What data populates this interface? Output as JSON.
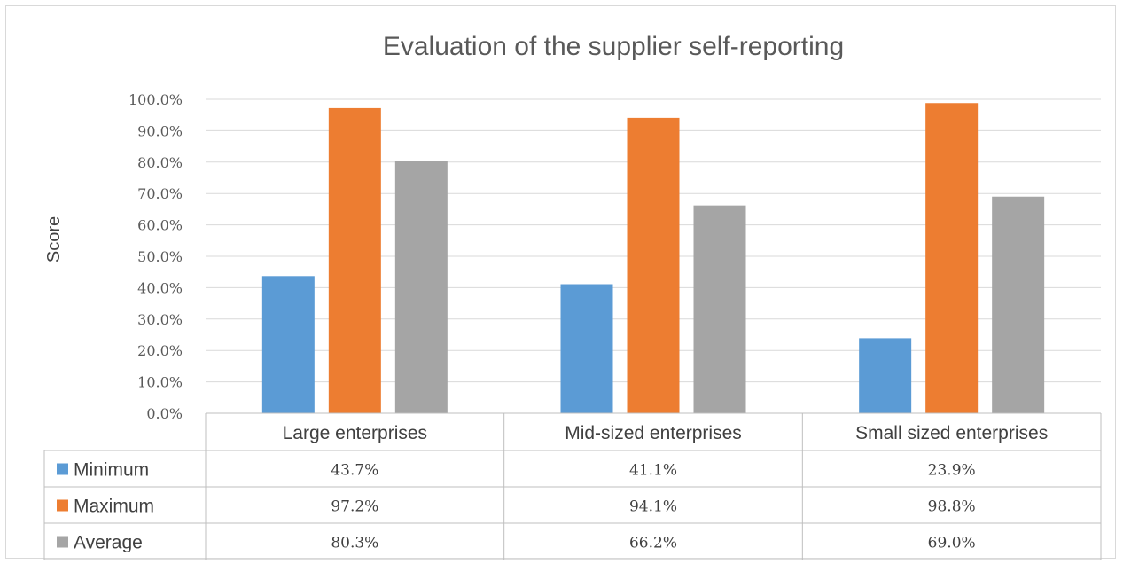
{
  "chart_data": {
    "type": "bar",
    "title": "Evaluation of the supplier self-reporting",
    "ylabel": "Score",
    "xlabel": "",
    "ylim": [
      0,
      100
    ],
    "y_ticks": [
      "0.0%",
      "10.0%",
      "20.0%",
      "30.0%",
      "40.0%",
      "50.0%",
      "60.0%",
      "70.0%",
      "80.0%",
      "90.0%",
      "100.0%"
    ],
    "grid": true,
    "legend": "data-table",
    "categories": [
      "Large enterprises",
      "Mid-sized enterprises",
      "Small sized enterprises"
    ],
    "series": [
      {
        "name": "Minimum",
        "color": "#5b9bd5",
        "values": [
          43.7,
          41.1,
          23.9
        ],
        "labels": [
          "43.7%",
          "41.1%",
          "23.9%"
        ]
      },
      {
        "name": "Maximum",
        "color": "#ed7d31",
        "values": [
          97.2,
          94.1,
          98.8
        ],
        "labels": [
          "97.2%",
          "94.1%",
          "98.8%"
        ]
      },
      {
        "name": "Average",
        "color": "#a5a5a5",
        "values": [
          80.3,
          66.2,
          69.0
        ],
        "labels": [
          "80.3%",
          "66.2%",
          "69.0%"
        ]
      }
    ]
  }
}
